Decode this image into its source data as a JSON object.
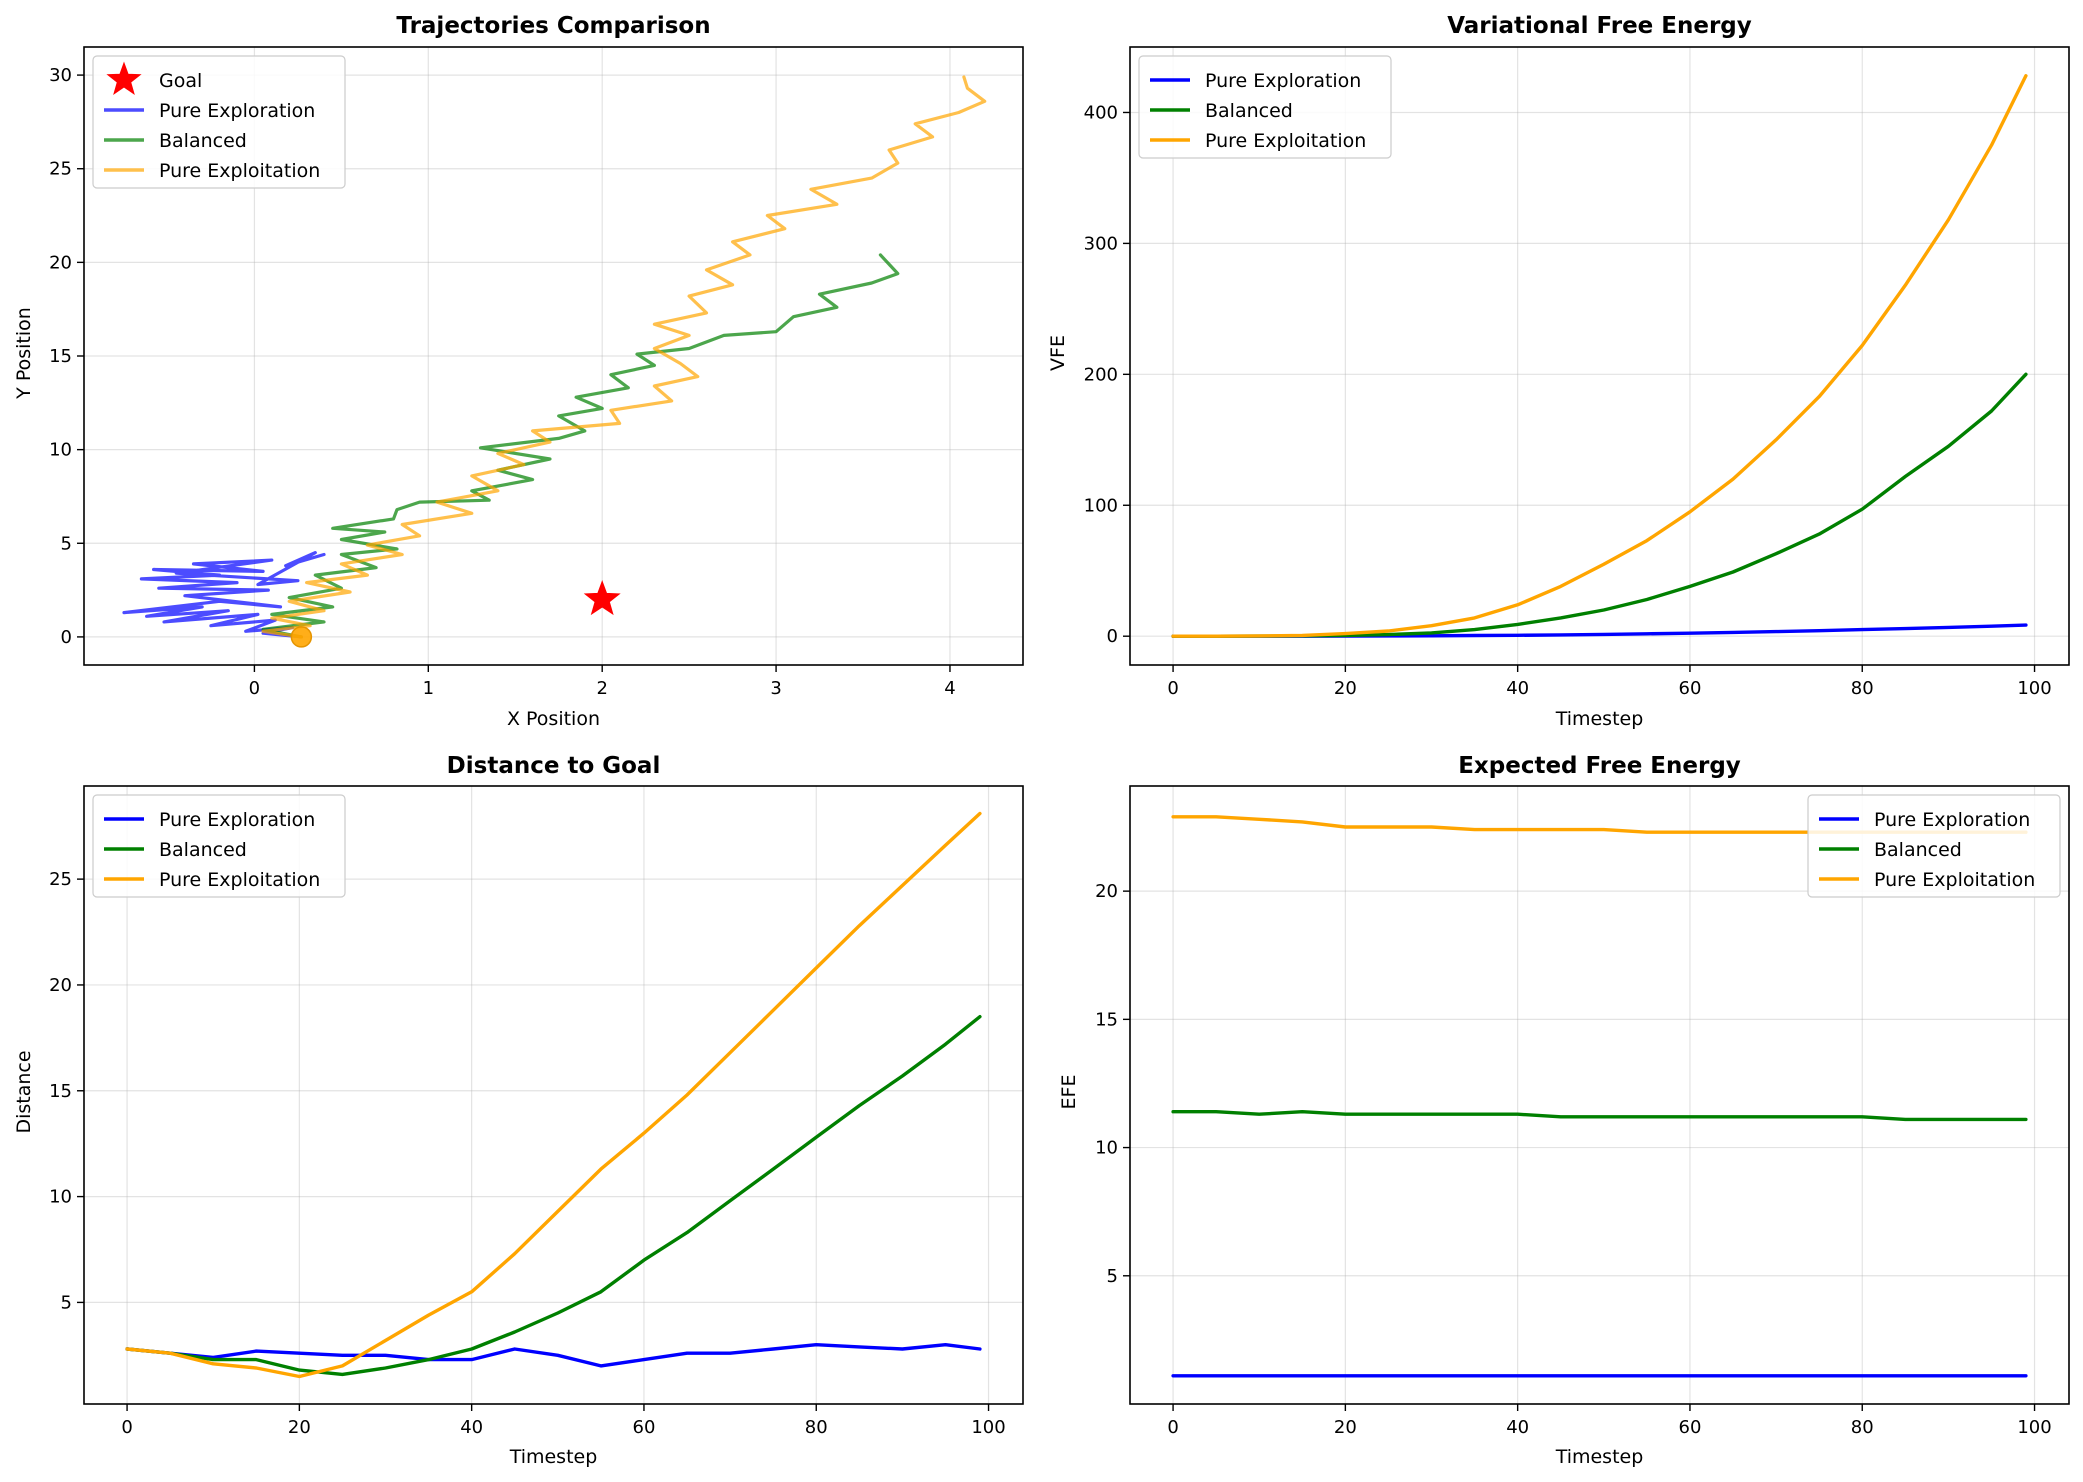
{
  "chart_data": [
    {
      "type": "line",
      "title": "Trajectories Comparison",
      "xlabel": "X Position",
      "ylabel": "Y Position",
      "xlim": [
        -0.98,
        4.42
      ],
      "ylim": [
        -1.5,
        31.5
      ],
      "xticks": [
        0,
        1,
        2,
        3,
        4
      ],
      "yticks": [
        0,
        5,
        10,
        15,
        20,
        25,
        30
      ],
      "xtick_labels": [
        "0",
        "1",
        "2",
        "3",
        "4"
      ],
      "ytick_labels": [
        "0",
        "5",
        "10",
        "15",
        "20",
        "25",
        "30"
      ],
      "grid": true,
      "legend_placement": "upper-left",
      "goal": {
        "name": "Goal",
        "x": 2.0,
        "y": 2.0,
        "color": "#ff0000",
        "marker": "star"
      },
      "start": {
        "x": 0.27,
        "y": 0.0,
        "color": "#ffa500",
        "marker": "circle"
      },
      "series": [
        {
          "name": "Pure Exploration",
          "color": "#0000ff",
          "alpha": 0.7,
          "points": [
            [
              0.27,
              0.0
            ],
            [
              0.05,
              0.2
            ],
            [
              0.22,
              0.5
            ],
            [
              -0.05,
              0.3
            ],
            [
              0.12,
              0.9
            ],
            [
              -0.25,
              0.6
            ],
            [
              0.02,
              1.2
            ],
            [
              -0.52,
              0.8
            ],
            [
              -0.15,
              1.4
            ],
            [
              -0.62,
              1.1
            ],
            [
              -0.3,
              1.6
            ],
            [
              -0.75,
              1.3
            ],
            [
              -0.2,
              1.9
            ],
            [
              0.15,
              1.6
            ],
            [
              -0.4,
              2.2
            ],
            [
              0.08,
              2.5
            ],
            [
              -0.55,
              2.6
            ],
            [
              -0.1,
              2.9
            ],
            [
              -0.65,
              3.1
            ],
            [
              -0.2,
              3.3
            ],
            [
              -0.58,
              3.6
            ],
            [
              0.05,
              3.5
            ],
            [
              -0.35,
              3.9
            ],
            [
              0.1,
              4.1
            ],
            [
              -0.45,
              3.4
            ],
            [
              0.25,
              3.0
            ],
            [
              0.02,
              2.8
            ],
            [
              0.35,
              4.5
            ],
            [
              0.18,
              3.8
            ],
            [
              0.4,
              4.4
            ]
          ]
        },
        {
          "name": "Balanced",
          "color": "#008000",
          "alpha": 0.7,
          "points": [
            [
              0.27,
              0.0
            ],
            [
              0.05,
              0.4
            ],
            [
              0.4,
              0.8
            ],
            [
              0.1,
              1.2
            ],
            [
              0.45,
              1.6
            ],
            [
              0.2,
              2.1
            ],
            [
              0.5,
              2.6
            ],
            [
              0.35,
              3.3
            ],
            [
              0.7,
              3.7
            ],
            [
              0.5,
              4.4
            ],
            [
              0.82,
              4.7
            ],
            [
              0.5,
              5.2
            ],
            [
              0.75,
              5.6
            ],
            [
              0.45,
              5.8
            ],
            [
              0.8,
              6.3
            ],
            [
              0.82,
              6.8
            ],
            [
              0.95,
              7.2
            ],
            [
              1.35,
              7.3
            ],
            [
              1.25,
              7.8
            ],
            [
              1.6,
              8.4
            ],
            [
              1.4,
              8.9
            ],
            [
              1.7,
              9.5
            ],
            [
              1.3,
              10.1
            ],
            [
              1.75,
              10.6
            ],
            [
              1.9,
              11.0
            ],
            [
              1.75,
              11.8
            ],
            [
              2.0,
              12.2
            ],
            [
              1.85,
              12.8
            ],
            [
              2.15,
              13.3
            ],
            [
              2.05,
              14.0
            ],
            [
              2.3,
              14.5
            ],
            [
              2.2,
              15.1
            ],
            [
              2.5,
              15.4
            ],
            [
              2.7,
              16.1
            ],
            [
              3.0,
              16.3
            ],
            [
              3.1,
              17.1
            ],
            [
              3.35,
              17.6
            ],
            [
              3.25,
              18.3
            ],
            [
              3.55,
              18.9
            ],
            [
              3.7,
              19.4
            ],
            [
              3.6,
              20.4
            ]
          ]
        },
        {
          "name": "Pure Exploitation",
          "color": "#ffa500",
          "alpha": 0.7,
          "points": [
            [
              0.27,
              0.0
            ],
            [
              0.05,
              0.3
            ],
            [
              0.32,
              0.6
            ],
            [
              0.1,
              1.0
            ],
            [
              0.4,
              1.4
            ],
            [
              0.2,
              1.9
            ],
            [
              0.55,
              2.4
            ],
            [
              0.3,
              2.9
            ],
            [
              0.65,
              3.3
            ],
            [
              0.5,
              3.9
            ],
            [
              0.85,
              4.4
            ],
            [
              0.65,
              4.9
            ],
            [
              0.95,
              5.4
            ],
            [
              0.85,
              6.0
            ],
            [
              1.25,
              6.6
            ],
            [
              1.05,
              7.2
            ],
            [
              1.4,
              7.8
            ],
            [
              1.25,
              8.6
            ],
            [
              1.55,
              9.2
            ],
            [
              1.4,
              9.8
            ],
            [
              1.7,
              10.4
            ],
            [
              1.6,
              11.0
            ],
            [
              2.1,
              11.4
            ],
            [
              2.05,
              12.1
            ],
            [
              2.4,
              12.6
            ],
            [
              2.3,
              13.4
            ],
            [
              2.55,
              13.9
            ],
            [
              2.45,
              14.6
            ],
            [
              2.3,
              15.4
            ],
            [
              2.5,
              16.1
            ],
            [
              2.3,
              16.7
            ],
            [
              2.6,
              17.3
            ],
            [
              2.5,
              18.2
            ],
            [
              2.75,
              18.8
            ],
            [
              2.6,
              19.6
            ],
            [
              2.85,
              20.4
            ],
            [
              2.75,
              21.1
            ],
            [
              3.05,
              21.8
            ],
            [
              2.95,
              22.5
            ],
            [
              3.35,
              23.1
            ],
            [
              3.2,
              23.9
            ],
            [
              3.55,
              24.5
            ],
            [
              3.7,
              25.3
            ],
            [
              3.65,
              26.0
            ],
            [
              3.9,
              26.7
            ],
            [
              3.8,
              27.4
            ],
            [
              4.05,
              28.0
            ],
            [
              4.2,
              28.6
            ],
            [
              4.1,
              29.3
            ],
            [
              4.08,
              29.9
            ]
          ]
        }
      ]
    },
    {
      "type": "line",
      "title": "Variational Free Energy",
      "xlabel": "Timestep",
      "ylabel": "VFE",
      "xlim": [
        -5,
        104
      ],
      "ylim": [
        -22,
        450
      ],
      "xticks": [
        0,
        20,
        40,
        60,
        80,
        100
      ],
      "yticks": [
        0,
        100,
        200,
        300,
        400
      ],
      "xtick_labels": [
        "0",
        "20",
        "40",
        "60",
        "80",
        "100"
      ],
      "ytick_labels": [
        "0",
        "100",
        "200",
        "300",
        "400"
      ],
      "grid": true,
      "legend_placement": "upper-left",
      "x": [
        0,
        5,
        10,
        15,
        20,
        25,
        30,
        35,
        40,
        45,
        50,
        55,
        60,
        65,
        70,
        75,
        80,
        85,
        90,
        95,
        99
      ],
      "series": [
        {
          "name": "Pure Exploration",
          "color": "#0000ff",
          "values": [
            0,
            0,
            0,
            0,
            0.1,
            0.2,
            0.3,
            0.5,
            0.7,
            1.0,
            1.4,
            1.8,
            2.3,
            2.9,
            3.5,
            4.2,
            5.0,
            5.8,
            6.7,
            7.6,
            8.5
          ]
        },
        {
          "name": "Balanced",
          "color": "#008000",
          "values": [
            0,
            0,
            0.1,
            0.3,
            0.6,
            1.2,
            2.5,
            5,
            9,
            14,
            20,
            28,
            38,
            49,
            63,
            78,
            97,
            122,
            145,
            172,
            200
          ]
        },
        {
          "name": "Pure Exploitation",
          "color": "#ffa500",
          "values": [
            0,
            0,
            0.2,
            0.6,
            2,
            4,
            8,
            14,
            24,
            38,
            55,
            73,
            95,
            120,
            150,
            183,
            222,
            268,
            318,
            375,
            428
          ]
        }
      ]
    },
    {
      "type": "line",
      "title": "Distance to Goal",
      "xlabel": "Timestep",
      "ylabel": "Distance",
      "xlim": [
        -5,
        104
      ],
      "ylim": [
        0.2,
        29.4
      ],
      "xticks": [
        0,
        20,
        40,
        60,
        80,
        100
      ],
      "yticks": [
        5,
        10,
        15,
        20,
        25
      ],
      "xtick_labels": [
        "0",
        "20",
        "40",
        "60",
        "80",
        "100"
      ],
      "ytick_labels": [
        "5",
        "10",
        "15",
        "20",
        "25"
      ],
      "grid": true,
      "legend_placement": "upper-left",
      "x": [
        0,
        5,
        10,
        15,
        20,
        25,
        30,
        35,
        40,
        45,
        50,
        55,
        60,
        65,
        70,
        75,
        80,
        85,
        90,
        95,
        99
      ],
      "series": [
        {
          "name": "Pure Exploration",
          "color": "#0000ff",
          "values": [
            2.8,
            2.6,
            2.4,
            2.7,
            2.6,
            2.5,
            2.5,
            2.3,
            2.3,
            2.8,
            2.5,
            2.0,
            2.3,
            2.6,
            2.6,
            2.8,
            3.0,
            2.9,
            2.8,
            3.0,
            2.8
          ]
        },
        {
          "name": "Balanced",
          "color": "#008000",
          "values": [
            2.8,
            2.6,
            2.3,
            2.3,
            1.8,
            1.6,
            1.9,
            2.3,
            2.8,
            3.6,
            4.5,
            5.5,
            7.0,
            8.3,
            9.8,
            11.3,
            12.8,
            14.3,
            15.7,
            17.2,
            18.5
          ]
        },
        {
          "name": "Pure Exploitation",
          "color": "#ffa500",
          "values": [
            2.8,
            2.6,
            2.1,
            1.9,
            1.5,
            2.0,
            3.2,
            4.4,
            5.5,
            7.3,
            9.3,
            11.3,
            13.0,
            14.8,
            16.8,
            18.8,
            20.8,
            22.8,
            24.7,
            26.6,
            28.1
          ]
        }
      ]
    },
    {
      "type": "line",
      "title": "Expected Free Energy",
      "xlabel": "Timestep",
      "ylabel": "EFE",
      "xlim": [
        -5,
        104
      ],
      "ylim": [
        0.0,
        24.1
      ],
      "xticks": [
        0,
        20,
        40,
        60,
        80,
        100
      ],
      "yticks": [
        5,
        10,
        15,
        20
      ],
      "xtick_labels": [
        "0",
        "20",
        "40",
        "60",
        "80",
        "100"
      ],
      "ytick_labels": [
        "5",
        "10",
        "15",
        "20"
      ],
      "grid": true,
      "legend_placement": "upper-right",
      "x": [
        0,
        5,
        10,
        15,
        20,
        25,
        30,
        35,
        40,
        45,
        50,
        55,
        60,
        65,
        70,
        75,
        80,
        85,
        90,
        95,
        99
      ],
      "series": [
        {
          "name": "Pure Exploration",
          "color": "#0000ff",
          "values": [
            1.1,
            1.1,
            1.1,
            1.1,
            1.1,
            1.1,
            1.1,
            1.1,
            1.1,
            1.1,
            1.1,
            1.1,
            1.1,
            1.1,
            1.1,
            1.1,
            1.1,
            1.1,
            1.1,
            1.1,
            1.1
          ]
        },
        {
          "name": "Balanced",
          "color": "#008000",
          "values": [
            11.4,
            11.4,
            11.3,
            11.4,
            11.3,
            11.3,
            11.3,
            11.3,
            11.3,
            11.2,
            11.2,
            11.2,
            11.2,
            11.2,
            11.2,
            11.2,
            11.2,
            11.1,
            11.1,
            11.1,
            11.1
          ]
        },
        {
          "name": "Pure Exploitation",
          "color": "#ffa500",
          "values": [
            22.9,
            22.9,
            22.8,
            22.7,
            22.5,
            22.5,
            22.5,
            22.4,
            22.4,
            22.4,
            22.4,
            22.3,
            22.3,
            22.3,
            22.3,
            22.3,
            22.3,
            22.3,
            22.3,
            22.3,
            22.3
          ]
        }
      ]
    }
  ]
}
